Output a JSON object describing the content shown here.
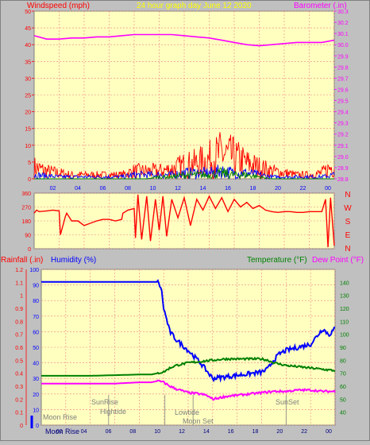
{
  "colors": {
    "background": "#c0c0c0",
    "plot_bg": "#ffffc0",
    "grid": "#f08080",
    "red": "#ff0000",
    "blue": "#0000ff",
    "green": "#008000",
    "magenta": "#ff00ff",
    "yellow": "#ffff00",
    "dark_blue": "#000080",
    "gray": "#808080"
  },
  "header": {
    "left": "Windspeed (mph)",
    "center": "24 hour graph day   June 12 2020",
    "right": "Barometer (.in)"
  },
  "middle_header": {
    "rainfall": "Rainfall (.in)",
    "humidity": "Humidity (%)",
    "temperature": "Temperature (°F)",
    "dewpoint": "Dew Point (°F)"
  },
  "hour_labels": [
    "02",
    "04",
    "06",
    "08",
    "10",
    "12",
    "14",
    "16",
    "18",
    "20",
    "22",
    "00"
  ],
  "compass_letters": [
    "N",
    "W",
    "S",
    "E",
    "N"
  ],
  "events": {
    "sunrise": "SunRise",
    "hightide": "Hightide",
    "lowtide": "Lowtide",
    "moonset": "Moon Set",
    "sunset": "SunSet",
    "moonrise_top": "Moon Rise",
    "moonrise_bottom": "Moon Rise"
  },
  "chart_data": [
    {
      "type": "line",
      "name": "wind-barometer",
      "x_unit": "hour",
      "xlim": [
        0,
        24
      ],
      "left_axis": {
        "ylim": [
          0,
          50
        ],
        "ticks": [
          0,
          5,
          10,
          15,
          20,
          25,
          30,
          35,
          40,
          45,
          50
        ]
      },
      "right_axis": {
        "ylim": [
          28.8,
          30.3
        ],
        "ticks": [
          28.8,
          28.9,
          29.0,
          29.1,
          29.2,
          29.3,
          29.4,
          29.5,
          29.6,
          29.7,
          29.8,
          29.9,
          30.0,
          30.1,
          30.2,
          30.3
        ]
      },
      "series": [
        {
          "axis": "right",
          "color": "#ff00ff",
          "style": "line",
          "x": [
            0,
            1,
            2,
            3,
            4,
            5,
            6,
            7,
            8,
            9,
            10,
            11,
            12,
            13,
            14,
            15,
            16,
            17,
            18,
            19,
            20,
            21,
            22,
            23,
            24
          ],
          "y": [
            30.08,
            30.05,
            30.05,
            30.06,
            30.06,
            30.07,
            30.07,
            30.08,
            30.09,
            30.09,
            30.09,
            30.09,
            30.08,
            30.07,
            30.06,
            30.04,
            30.02,
            30.0,
            29.99,
            30.0,
            30.01,
            30.02,
            30.02,
            30.02,
            30.04
          ]
        },
        {
          "axis": "left",
          "color": "#ff0000",
          "style": "noise",
          "x": [
            0,
            1,
            2,
            3,
            4,
            5,
            6,
            7,
            8,
            9,
            10,
            11,
            12,
            13,
            14,
            15,
            16,
            17,
            18,
            19,
            20,
            21,
            22,
            23,
            24
          ],
          "y": [
            6,
            4,
            3,
            2,
            2,
            2,
            2,
            2,
            4,
            4,
            4,
            5,
            7,
            8,
            10,
            13,
            11,
            8,
            6,
            4,
            3,
            2,
            2,
            3,
            7
          ]
        },
        {
          "axis": "left",
          "color": "#0000ff",
          "style": "noise",
          "x": [
            0,
            1,
            2,
            3,
            4,
            5,
            6,
            7,
            8,
            9,
            10,
            11,
            12,
            13,
            14,
            15,
            16,
            17,
            18,
            19,
            20,
            21,
            22,
            23,
            24
          ],
          "y": [
            2,
            1.5,
            1,
            1,
            1,
            1,
            1,
            1,
            2,
            2,
            2,
            2,
            3,
            3,
            3,
            4,
            3,
            3,
            2,
            1,
            1,
            1,
            1,
            1,
            2
          ]
        },
        {
          "axis": "left",
          "color": "#008000",
          "style": "noise",
          "x": [
            0,
            1,
            2,
            3,
            4,
            5,
            6,
            7,
            8,
            9,
            10,
            11,
            12,
            13,
            14,
            15,
            16,
            17,
            18,
            19,
            20,
            21,
            22,
            23,
            24
          ],
          "y": [
            0,
            0,
            0,
            0,
            0,
            0,
            0,
            0,
            0,
            0,
            1,
            1,
            2,
            2,
            2,
            3,
            2,
            2,
            1,
            0,
            0,
            0,
            0,
            0,
            0
          ]
        }
      ]
    },
    {
      "type": "line",
      "name": "wind-direction",
      "x_unit": "hour",
      "xlim": [
        0,
        24
      ],
      "left_axis": {
        "ylim": [
          0,
          360
        ],
        "ticks": [
          0,
          90,
          180,
          270,
          360
        ]
      },
      "series": [
        {
          "color": "#ff0000",
          "style": "line",
          "x": [
            0,
            0.2,
            0.4,
            1,
            1.5,
            2,
            2.1,
            2.5,
            2.6,
            3,
            3.5,
            4,
            4.5,
            5,
            5.5,
            6,
            6.5,
            7,
            7.1,
            7.5,
            8,
            8.1,
            8.3,
            8.6,
            9,
            9.3,
            9.7,
            10,
            10.3,
            10.6,
            11,
            11.5,
            12,
            12.5,
            13,
            13.5,
            14,
            14.5,
            15,
            15.5,
            16,
            16.5,
            17,
            17.5,
            18,
            18.5,
            19,
            19.5,
            20,
            20.5,
            21,
            21.5,
            22,
            22.5,
            23,
            23.3,
            23.5,
            23.7,
            24
          ],
          "y": [
            230,
            250,
            240,
            245,
            250,
            245,
            90,
            210,
            230,
            180,
            180,
            150,
            165,
            180,
            190,
            190,
            180,
            190,
            230,
            250,
            260,
            70,
            350,
            60,
            340,
            50,
            320,
            120,
            340,
            80,
            320,
            200,
            330,
            150,
            320,
            250,
            340,
            260,
            330,
            240,
            320,
            270,
            300,
            260,
            280,
            250,
            240,
            235,
            240,
            240,
            235,
            235,
            240,
            240,
            240,
            320,
            10,
            330,
            20
          ]
        }
      ]
    },
    {
      "type": "line",
      "name": "humidity-temperature",
      "x_unit": "hour",
      "xlim": [
        0,
        24
      ],
      "rainfall_axis": {
        "ylim": [
          0,
          1.2
        ],
        "ticks": [
          0,
          0.1,
          0.2,
          0.3,
          0.4,
          0.5,
          0.6,
          0.7,
          0.8,
          0.9,
          1,
          1.1,
          1.2
        ]
      },
      "humidity_axis": {
        "ylim": [
          0,
          100
        ],
        "ticks": [
          0,
          10,
          20,
          30,
          40,
          50,
          60,
          70,
          80,
          90,
          100
        ]
      },
      "temperature_axis": {
        "ylim": [
          30,
          150
        ],
        "ticks": [
          40,
          50,
          60,
          70,
          80,
          90,
          100,
          110,
          120,
          130,
          140
        ]
      },
      "series": [
        {
          "axis": "humidity",
          "color": "#0000ff",
          "style": "line",
          "x": [
            0,
            2,
            4,
            6,
            8,
            9,
            9.5,
            9.8,
            10,
            10.5,
            11,
            12,
            12.5,
            13,
            13.5,
            14,
            15,
            16,
            17,
            18,
            18.5,
            19,
            19.5,
            20,
            21,
            22,
            22.5,
            23,
            23.5,
            24
          ],
          "y": [
            92,
            92,
            92,
            92,
            92,
            92,
            92,
            88,
            75,
            60,
            55,
            48,
            44,
            40,
            35,
            30,
            31,
            32,
            33,
            34,
            36,
            42,
            46,
            48,
            50,
            52,
            57,
            62,
            58,
            62
          ]
        },
        {
          "axis": "temperature",
          "color": "#008000",
          "style": "line",
          "x": [
            0,
            2,
            4,
            6,
            8,
            9,
            9.5,
            10,
            10.5,
            11,
            12,
            13,
            14,
            15,
            16,
            17,
            18,
            18.5,
            19,
            20,
            21,
            22,
            23,
            24
          ],
          "y": [
            68,
            68,
            68,
            68.5,
            69,
            69,
            70,
            71,
            74,
            76,
            78,
            79,
            80,
            81,
            81,
            81,
            81,
            80,
            78,
            76,
            75,
            74,
            73,
            72
          ]
        },
        {
          "axis": "temperature",
          "color": "#ff00ff",
          "style": "line",
          "x": [
            0,
            2,
            4,
            6,
            8,
            9,
            9.5,
            10,
            10.5,
            11,
            12,
            13,
            13.5,
            14,
            15,
            16,
            17,
            18,
            19,
            20,
            21,
            22,
            23,
            24
          ],
          "y": [
            62,
            62,
            62,
            62,
            63,
            63,
            64,
            63,
            60,
            58,
            55,
            54,
            53,
            50,
            52,
            53,
            54,
            55,
            56,
            56,
            57,
            57,
            56,
            56
          ]
        }
      ]
    }
  ]
}
